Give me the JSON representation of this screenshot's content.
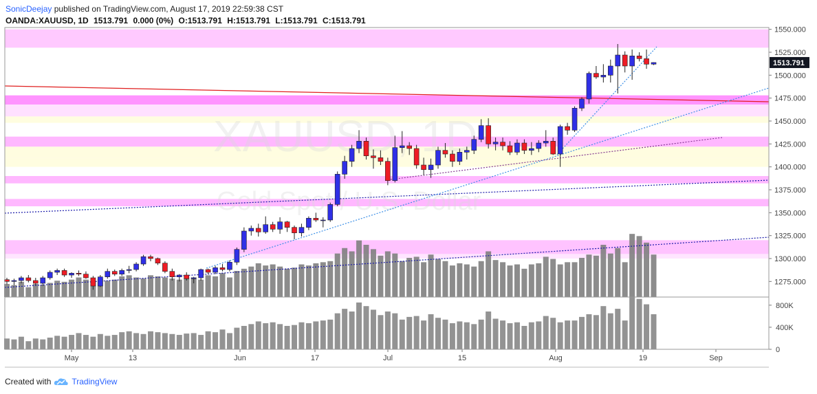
{
  "header": {
    "author": "SonicDeejay",
    "published_text": "published on TradingView.com, August 17, 2019 22:59:38 CST",
    "symbol_line": "OANDA:XAUUSD, 1D",
    "last": "1513.791",
    "change": "0.000 (0%)",
    "open": "O:1513.791",
    "high": "H:1513.791",
    "low": "L:1513.791",
    "close": "C:1513.791"
  },
  "watermark": {
    "symbol": "XAUUSD, 1D",
    "description": "Gold Spot / U.S. Dollar"
  },
  "footer": {
    "created_with": "Created with",
    "brand": "TradingView"
  },
  "colors": {
    "up": "#2f2fe6",
    "down": "#ee1c25",
    "zone": "#ff88ff",
    "zone_light": "#ffeeff",
    "support": "#fffde0",
    "volume": "#808080",
    "price_tag": "#131722"
  },
  "chart_data": {
    "type": "candlestick",
    "price_axis": {
      "ticks": [
        1550,
        1525,
        1500,
        1475,
        1450,
        1425,
        1400,
        1375,
        1350,
        1325,
        1300,
        1275
      ],
      "labels": [
        "1550.000",
        "1525.000",
        "1500.000",
        "1475.000",
        "1450.000",
        "1425.000",
        "1400.000",
        "1375.000",
        "1350.000",
        "1325.000",
        "1300.000",
        "1275.000"
      ],
      "range": [
        1258,
        1552
      ]
    },
    "last_price_label": "1513.791",
    "time_axis": {
      "labels": [
        "May",
        "13",
        "Jun",
        "17",
        "Jul",
        "15",
        "Aug",
        "19",
        "Sep"
      ]
    },
    "volume_axis": {
      "labels": [
        "800K",
        "400K",
        "0"
      ],
      "ticks": [
        800000,
        400000,
        0
      ],
      "range": [
        0,
        900000
      ]
    },
    "candles": [
      [
        1277,
        1279,
        1272,
        1275
      ],
      [
        1275,
        1278,
        1271,
        1276
      ],
      [
        1276,
        1281,
        1273,
        1279
      ],
      [
        1279,
        1282,
        1274,
        1276
      ],
      [
        1276,
        1279,
        1271,
        1273
      ],
      [
        1273,
        1281,
        1270,
        1279
      ],
      [
        1279,
        1287,
        1277,
        1285
      ],
      [
        1285,
        1289,
        1282,
        1287
      ],
      [
        1287,
        1289,
        1280,
        1282
      ],
      [
        1282,
        1285,
        1279,
        1284
      ],
      [
        1284,
        1287,
        1281,
        1283
      ],
      [
        1283,
        1286,
        1278,
        1279
      ],
      [
        1279,
        1281,
        1266,
        1270
      ],
      [
        1270,
        1282,
        1269,
        1280
      ],
      [
        1280,
        1289,
        1278,
        1286
      ],
      [
        1286,
        1288,
        1281,
        1283
      ],
      [
        1283,
        1289,
        1281,
        1287
      ],
      [
        1287,
        1292,
        1284,
        1288
      ],
      [
        1288,
        1296,
        1286,
        1294
      ],
      [
        1294,
        1304,
        1292,
        1302
      ],
      [
        1302,
        1304,
        1297,
        1300
      ],
      [
        1300,
        1301,
        1293,
        1295
      ],
      [
        1295,
        1297,
        1284,
        1286
      ],
      [
        1286,
        1289,
        1276,
        1280
      ],
      [
        1280,
        1283,
        1275,
        1282
      ],
      [
        1282,
        1285,
        1276,
        1278
      ],
      [
        1278,
        1280,
        1273,
        1279
      ],
      [
        1279,
        1289,
        1276,
        1288
      ],
      [
        1288,
        1289,
        1283,
        1285
      ],
      [
        1285,
        1292,
        1283,
        1290
      ],
      [
        1290,
        1294,
        1286,
        1288
      ],
      [
        1288,
        1298,
        1286,
        1296
      ],
      [
        1296,
        1312,
        1293,
        1310
      ],
      [
        1310,
        1334,
        1307,
        1330
      ],
      [
        1330,
        1336,
        1325,
        1333
      ],
      [
        1333,
        1338,
        1324,
        1329
      ],
      [
        1329,
        1346,
        1327,
        1337
      ],
      [
        1337,
        1340,
        1329,
        1332
      ],
      [
        1332,
        1345,
        1327,
        1340
      ],
      [
        1340,
        1341,
        1329,
        1334
      ],
      [
        1334,
        1336,
        1321,
        1328
      ],
      [
        1328,
        1338,
        1324,
        1334
      ],
      [
        1334,
        1346,
        1331,
        1344
      ],
      [
        1344,
        1350,
        1340,
        1342
      ],
      [
        1342,
        1345,
        1334,
        1342
      ],
      [
        1342,
        1361,
        1340,
        1359
      ],
      [
        1359,
        1395,
        1357,
        1392
      ],
      [
        1392,
        1412,
        1387,
        1406
      ],
      [
        1406,
        1424,
        1400,
        1420
      ],
      [
        1420,
        1440,
        1415,
        1428
      ],
      [
        1428,
        1432,
        1408,
        1412
      ],
      [
        1412,
        1419,
        1398,
        1410
      ],
      [
        1410,
        1418,
        1402,
        1406
      ],
      [
        1406,
        1410,
        1380,
        1385
      ],
      [
        1385,
        1434,
        1383,
        1421
      ],
      [
        1421,
        1439,
        1415,
        1423
      ],
      [
        1423,
        1427,
        1413,
        1420
      ],
      [
        1420,
        1424,
        1398,
        1402
      ],
      [
        1402,
        1410,
        1391,
        1397
      ],
      [
        1397,
        1409,
        1388,
        1402
      ],
      [
        1402,
        1422,
        1398,
        1418
      ],
      [
        1418,
        1426,
        1410,
        1414
      ],
      [
        1414,
        1418,
        1400,
        1406
      ],
      [
        1406,
        1420,
        1402,
        1416
      ],
      [
        1416,
        1422,
        1408,
        1418
      ],
      [
        1418,
        1434,
        1414,
        1430
      ],
      [
        1430,
        1452,
        1427,
        1445
      ],
      [
        1445,
        1453,
        1420,
        1425
      ],
      [
        1425,
        1432,
        1418,
        1427
      ],
      [
        1427,
        1432,
        1418,
        1423
      ],
      [
        1423,
        1428,
        1413,
        1416
      ],
      [
        1416,
        1430,
        1413,
        1426
      ],
      [
        1426,
        1430,
        1414,
        1418
      ],
      [
        1418,
        1427,
        1413,
        1420
      ],
      [
        1420,
        1429,
        1416,
        1426
      ],
      [
        1426,
        1440,
        1422,
        1428
      ],
      [
        1428,
        1432,
        1413,
        1414
      ],
      [
        1414,
        1446,
        1400,
        1444
      ],
      [
        1444,
        1448,
        1435,
        1440
      ],
      [
        1440,
        1466,
        1438,
        1464
      ],
      [
        1464,
        1476,
        1461,
        1474
      ],
      [
        1474,
        1504,
        1469,
        1502
      ],
      [
        1502,
        1510,
        1496,
        1498
      ],
      [
        1498,
        1512,
        1492,
        1500
      ],
      [
        1500,
        1517,
        1492,
        1510
      ],
      [
        1510,
        1534,
        1480,
        1522
      ],
      [
        1522,
        1526,
        1503,
        1510
      ],
      [
        1510,
        1528,
        1495,
        1521
      ],
      [
        1521,
        1525,
        1515,
        1518
      ],
      [
        1518,
        1528,
        1507,
        1512
      ],
      [
        1512,
        1514,
        1511,
        1513.791
      ]
    ],
    "volumes": [
      120,
      110,
      140,
      90,
      120,
      110,
      130,
      150,
      140,
      160,
      180,
      160,
      140,
      170,
      150,
      160,
      190,
      200,
      180,
      170,
      200,
      190,
      180,
      170,
      160,
      175,
      180,
      160,
      200,
      190,
      220,
      180,
      240,
      260,
      280,
      310,
      290,
      300,
      280,
      260,
      270,
      300,
      290,
      310,
      320,
      330,
      400,
      450,
      420,
      520,
      480,
      440,
      380,
      420,
      400,
      330,
      360,
      370,
      320,
      390,
      350,
      330,
      290,
      310,
      300,
      280,
      330,
      420,
      340,
      320,
      290,
      300,
      260,
      300,
      310,
      370,
      350,
      300,
      320,
      320,
      360,
      390,
      380,
      480,
      400,
      450,
      320,
      580,
      560,
      500,
      390
    ],
    "volume_scale_note": "",
    "zones": [
      [
        1530,
        1550,
        "#ff88ff",
        "0.45"
      ],
      [
        1468,
        1478,
        "#ff66ff",
        "0.7"
      ],
      [
        1455,
        1468,
        "#ffccff",
        "0.6"
      ],
      [
        1448,
        1455,
        "#fffde0",
        "1"
      ],
      [
        1422,
        1433,
        "#ff88ff",
        "0.6"
      ],
      [
        1410,
        1422,
        "#fffde0",
        "1"
      ],
      [
        1400,
        1410,
        "#fffde0",
        "1"
      ],
      [
        1382,
        1390,
        "#ff88ff",
        "0.6"
      ],
      [
        1357,
        1365,
        "#ff88ff",
        "0.6"
      ],
      [
        1305,
        1320,
        "#ff88ff",
        "0.5"
      ],
      [
        1300,
        1305,
        "#ffccff",
        "0.5"
      ]
    ]
  }
}
